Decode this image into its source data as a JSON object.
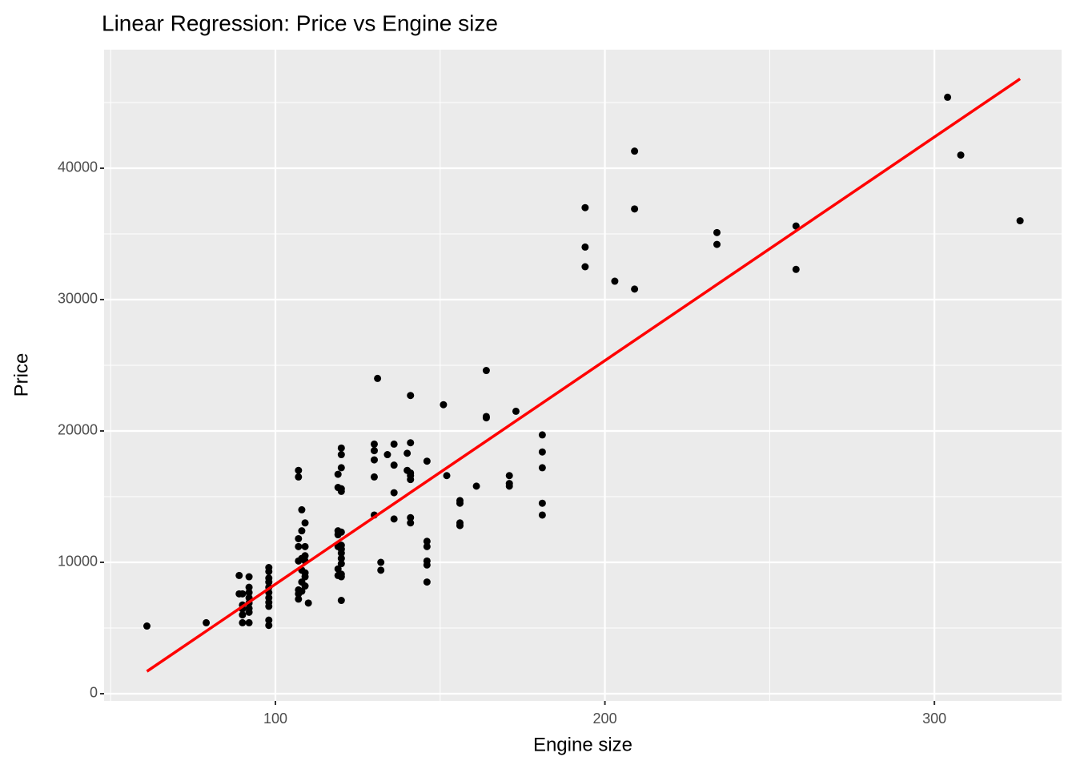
{
  "chart_data": {
    "type": "scatter",
    "title": "Linear Regression: Price vs Engine size",
    "x_label": "Engine size",
    "y_label": "Price",
    "xlim": [
      48,
      338.6
    ],
    "ylim": [
      -549,
      49024
    ],
    "xticks": [
      100,
      200,
      300
    ],
    "yticks": [
      0,
      10000,
      20000,
      30000,
      40000
    ],
    "x_minor_ticks": [
      50,
      150,
      250
    ],
    "y_minor_ticks": [
      5000,
      15000,
      25000,
      35000,
      45000
    ],
    "grid": true,
    "color": "#000000",
    "x": [
      61,
      79,
      304,
      308,
      326,
      258,
      258,
      234,
      234,
      209,
      209,
      209,
      203,
      194,
      194,
      194,
      181,
      181,
      181,
      181,
      181,
      173,
      171,
      171,
      171,
      164,
      164,
      164,
      161,
      156,
      156,
      156,
      156,
      152,
      151,
      146,
      146,
      146,
      146,
      146,
      146,
      141,
      141,
      141,
      141,
      141,
      141,
      141,
      140,
      140,
      136,
      136,
      136,
      136,
      134,
      131,
      132,
      132,
      130,
      130,
      130,
      130,
      130,
      120,
      120,
      120,
      120,
      120,
      120,
      120,
      120,
      120,
      120,
      120,
      120,
      120,
      120,
      119,
      119,
      119,
      119,
      119,
      119,
      119,
      110,
      109,
      109,
      109,
      109,
      109,
      109,
      109,
      108,
      108,
      108,
      108,
      108,
      108,
      107,
      107,
      107,
      107,
      107,
      107,
      107,
      107,
      98,
      98,
      98,
      98,
      98,
      98,
      98,
      98,
      98,
      98,
      98,
      92,
      92,
      92,
      92,
      92,
      92,
      92,
      92,
      90,
      90,
      90,
      90,
      90,
      89,
      89
    ],
    "values": [
      5150,
      5400,
      45400,
      41000,
      36000,
      35600,
      32300,
      35100,
      34200,
      41300,
      36900,
      30800,
      31400,
      37000,
      34000,
      32500,
      19700,
      18400,
      17200,
      14500,
      13600,
      21500,
      16600,
      16000,
      15800,
      24600,
      21100,
      21000,
      15800,
      14700,
      14500,
      13000,
      12800,
      16600,
      22000,
      17700,
      11600,
      11200,
      10100,
      9800,
      8500,
      22700,
      19100,
      16800,
      16600,
      16300,
      13400,
      13000,
      18300,
      17000,
      19000,
      17400,
      15300,
      13300,
      18200,
      24000,
      10000,
      9400,
      19000,
      18500,
      17800,
      16500,
      13600,
      18700,
      18200,
      17200,
      15600,
      15400,
      12300,
      11300,
      11000,
      10700,
      10300,
      9900,
      9100,
      8900,
      7100,
      16700,
      15700,
      12400,
      12100,
      11200,
      9500,
      9000,
      6900,
      13000,
      11200,
      10500,
      10100,
      9200,
      8900,
      8200,
      14000,
      12400,
      10300,
      9400,
      8500,
      7800,
      17000,
      16500,
      11800,
      11200,
      10100,
      7900,
      7600,
      7200,
      9600,
      9300,
      8800,
      8500,
      8100,
      7700,
      7300,
      6950,
      6650,
      5600,
      5200,
      8900,
      8100,
      7700,
      7300,
      6900,
      6500,
      6200,
      5400,
      7600,
      6750,
      6450,
      6000,
      5400,
      9000,
      7600
    ],
    "regression": {
      "x": [
        61,
        326
      ],
      "values": [
        1700,
        46800
      ],
      "color": "#ff0000"
    }
  }
}
